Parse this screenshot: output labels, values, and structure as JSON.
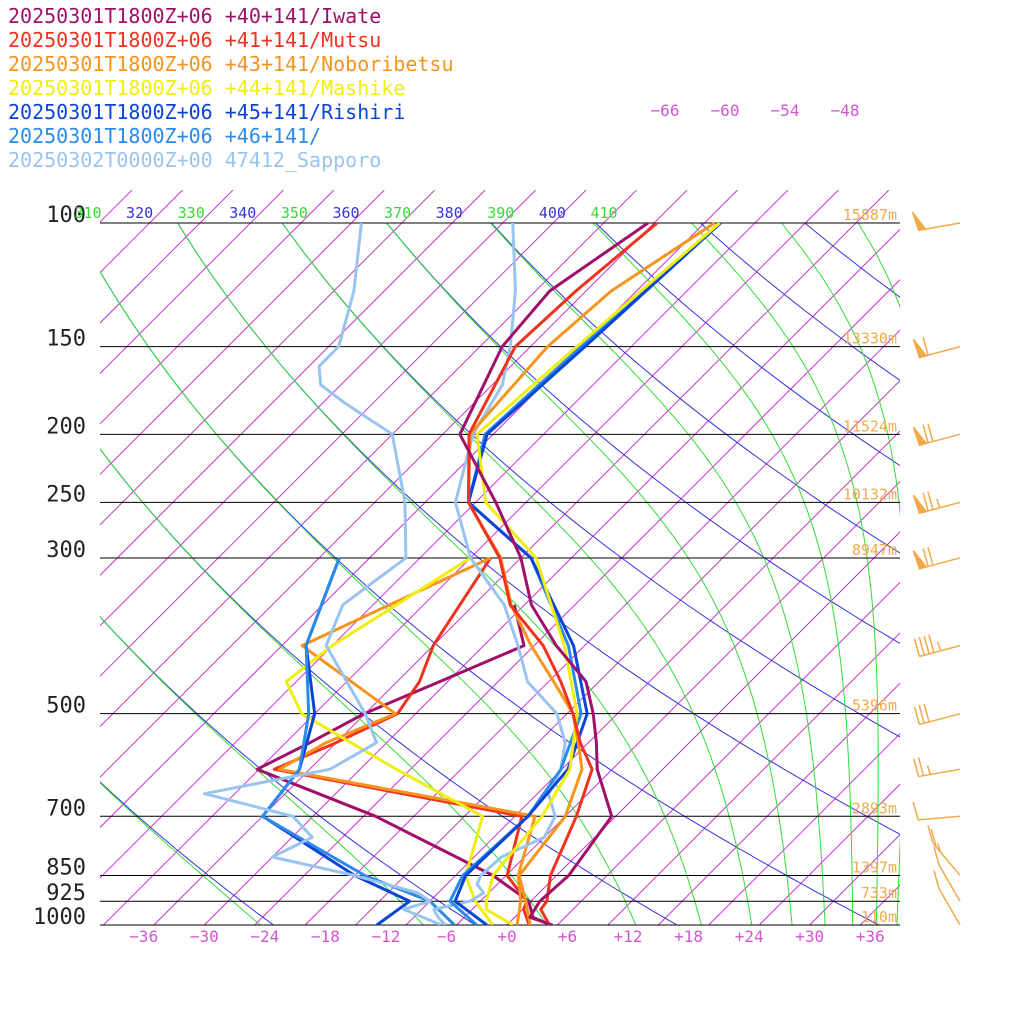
{
  "colors": {
    "isobar": "#000000",
    "isotherm": "#cc33cc",
    "dry_adiabat": "#3333dd",
    "moist_adiabat": "#33dd33",
    "tick_label": "#d455d4",
    "height_label": "#f2a94a",
    "barb": "#f2a94a"
  },
  "chart_data": {
    "type": "line",
    "chart_kind": "skew-T log-P sounding",
    "title": "",
    "xlabel": "",
    "ylabel": "",
    "x_range_degC": [
      -40,
      40
    ],
    "pressure_range_hPa": [
      1000,
      100
    ],
    "pressure_ticks": [
      {
        "p": 100,
        "label": "100"
      },
      {
        "p": 150,
        "label": "150"
      },
      {
        "p": 200,
        "label": "200"
      },
      {
        "p": 250,
        "label": "250"
      },
      {
        "p": 300,
        "label": "300"
      },
      {
        "p": 500,
        "label": "500"
      },
      {
        "p": 700,
        "label": "700"
      },
      {
        "p": 850,
        "label": "850"
      },
      {
        "p": 925,
        "label": "925"
      },
      {
        "p": 1000,
        "label": "1000"
      }
    ],
    "temperature_ticks": [
      {
        "t": -36,
        "label": "−36"
      },
      {
        "t": -30,
        "label": "−30"
      },
      {
        "t": -24,
        "label": "−24"
      },
      {
        "t": -18,
        "label": "−18"
      },
      {
        "t": -12,
        "label": "−12"
      },
      {
        "t": -6,
        "label": "−6"
      },
      {
        "t": 0,
        "label": "+0"
      },
      {
        "t": 6,
        "label": "+6"
      },
      {
        "t": 12,
        "label": "+12"
      },
      {
        "t": 18,
        "label": "+18"
      },
      {
        "t": 24,
        "label": "+24"
      },
      {
        "t": 30,
        "label": "+30"
      },
      {
        "t": 36,
        "label": "+36"
      }
    ],
    "upper_temperature_labels": [
      "−66",
      "−60",
      "−54",
      "−48"
    ],
    "theta_labels": [
      {
        "label": "310",
        "kind": "moist"
      },
      {
        "label": "320",
        "kind": "dry"
      },
      {
        "label": "330",
        "kind": "moist"
      },
      {
        "label": "340",
        "kind": "dry"
      },
      {
        "label": "350",
        "kind": "moist"
      },
      {
        "label": "360",
        "kind": "dry"
      },
      {
        "label": "370",
        "kind": "moist"
      },
      {
        "label": "380",
        "kind": "dry"
      },
      {
        "label": "390",
        "kind": "moist"
      },
      {
        "label": "400",
        "kind": "dry"
      },
      {
        "label": "410",
        "kind": "moist"
      }
    ],
    "height_labels": [
      {
        "p": 100,
        "label": "15887m"
      },
      {
        "p": 150,
        "label": "13330m"
      },
      {
        "p": 200,
        "label": "11524m"
      },
      {
        "p": 250,
        "label": "10132m"
      },
      {
        "p": 300,
        "label": "8947m"
      },
      {
        "p": 500,
        "label": "5396m"
      },
      {
        "p": 700,
        "label": "2893m"
      },
      {
        "p": 850,
        "label": "1397m"
      },
      {
        "p": 925,
        "label": "733m"
      },
      {
        "p": 1000,
        "label": "110m"
      }
    ],
    "series": [
      {
        "name": "20250301T1800Z+06 +40+141/Iwate",
        "color": "#a0106a",
        "temperature": [
          [
            1000,
            4.5
          ],
          [
            975,
            1.5
          ],
          [
            925,
            0.9
          ],
          [
            850,
            1.2
          ],
          [
            700,
            -0.4
          ],
          [
            600,
            -6.5
          ],
          [
            550,
            -9.2
          ],
          [
            500,
            -12.4
          ],
          [
            450,
            -16.3
          ],
          [
            400,
            -22.8
          ],
          [
            350,
            -29.3
          ],
          [
            300,
            -35.0
          ],
          [
            250,
            -43.0
          ],
          [
            200,
            -53.3
          ],
          [
            150,
            -57.8
          ],
          [
            125,
            -58.6
          ],
          [
            100,
            -55.6
          ]
        ],
        "dewpoint": [
          [
            1000,
            4.3
          ],
          [
            975,
            1.8
          ],
          [
            925,
            -0.2
          ],
          [
            850,
            -6.3
          ],
          [
            700,
            -23.8
          ],
          [
            600,
            -40.2
          ],
          [
            550,
            -37.6
          ],
          [
            500,
            -35.1
          ],
          [
            450,
            -30.8
          ],
          [
            400,
            -26.0
          ],
          [
            350,
            -31.0
          ]
        ]
      },
      {
        "name": "20250301T1800Z+06 +41+141/Mutsu",
        "color": "#f0321e",
        "temperature": [
          [
            1000,
            4.2
          ],
          [
            950,
            1.8
          ],
          [
            925,
            1.6
          ],
          [
            850,
            -0.6
          ],
          [
            700,
            -3.9
          ],
          [
            600,
            -7.0
          ],
          [
            550,
            -10.8
          ],
          [
            500,
            -14.4
          ],
          [
            450,
            -18.8
          ],
          [
            400,
            -24.1
          ],
          [
            350,
            -31.4
          ],
          [
            300,
            -37.1
          ],
          [
            250,
            -45.7
          ],
          [
            200,
            -52.4
          ],
          [
            150,
            -56.5
          ],
          [
            125,
            -56.0
          ],
          [
            100,
            -54.7
          ]
        ],
        "dewpoint": [
          [
            1000,
            2.2
          ],
          [
            950,
            0.1
          ],
          [
            925,
            -0.4
          ],
          [
            850,
            -4.9
          ],
          [
            700,
            -9.3
          ],
          [
            600,
            -38.5
          ],
          [
            550,
            -35.0
          ],
          [
            500,
            -31.8
          ],
          [
            450,
            -32.8
          ],
          [
            400,
            -35.0
          ],
          [
            300,
            -38.0
          ]
        ]
      },
      {
        "name": "20250301T1800Z+06 +43+141/Noboribetsu",
        "color": "#f7941d",
        "temperature": [
          [
            1000,
            2.3
          ],
          [
            925,
            -0.5
          ],
          [
            850,
            -3.7
          ],
          [
            700,
            -5.0
          ],
          [
            600,
            -8.0
          ],
          [
            550,
            -11.0
          ],
          [
            500,
            -14.4
          ],
          [
            450,
            -19.5
          ],
          [
            400,
            -25.3
          ],
          [
            350,
            -31.3
          ],
          [
            300,
            -37.0
          ],
          [
            250,
            -45.7
          ],
          [
            200,
            -52.3
          ],
          [
            150,
            -53.3
          ],
          [
            125,
            -52.5
          ],
          [
            100,
            -49.0
          ]
        ],
        "dewpoint": [
          [
            1000,
            1.0
          ],
          [
            925,
            -1.0
          ],
          [
            850,
            -3.8
          ],
          [
            700,
            -8.0
          ],
          [
            600,
            -38.0
          ],
          [
            550,
            -36.0
          ],
          [
            500,
            -32.0
          ],
          [
            400,
            -48.0
          ],
          [
            300,
            -38.0
          ]
        ]
      },
      {
        "name": "20250301T1800Z+06 +44+141/Mashike",
        "color": "#f0ee10",
        "temperature": [
          [
            1000,
            0.6
          ],
          [
            950,
            -3.6
          ],
          [
            925,
            -4.4
          ],
          [
            850,
            -6.3
          ],
          [
            700,
            -7.3
          ],
          [
            600,
            -9.2
          ],
          [
            500,
            -14.0
          ],
          [
            400,
            -22.0
          ],
          [
            300,
            -33.5
          ],
          [
            250,
            -44.0
          ],
          [
            200,
            -51.6
          ],
          [
            150,
            -50.4
          ],
          [
            100,
            -48.5
          ]
        ],
        "dewpoint": [
          [
            1000,
            -1.4
          ],
          [
            925,
            -5.5
          ],
          [
            850,
            -9.0
          ],
          [
            700,
            -13.2
          ],
          [
            600,
            -26.4
          ],
          [
            500,
            -41.3
          ],
          [
            450,
            -46.0
          ],
          [
            400,
            -45.0
          ],
          [
            300,
            -40.0
          ]
        ]
      },
      {
        "name": "20250301T1800Z+06 +45+141/Rishiri",
        "color": "#0b45d8",
        "temperature": [
          [
            1000,
            -2.0
          ],
          [
            925,
            -7.5
          ],
          [
            850,
            -9.0
          ],
          [
            700,
            -8.7
          ],
          [
            600,
            -9.4
          ],
          [
            500,
            -13.0
          ],
          [
            400,
            -21.1
          ],
          [
            300,
            -34.0
          ],
          [
            250,
            -45.7
          ],
          [
            200,
            -50.6
          ],
          [
            150,
            -49.6
          ],
          [
            100,
            -48.4
          ]
        ],
        "dewpoint": [
          [
            1000,
            -12.9
          ],
          [
            925,
            -12.0
          ],
          [
            850,
            -20.0
          ],
          [
            700,
            -35.0
          ],
          [
            600,
            -36.0
          ],
          [
            500,
            -40.0
          ],
          [
            400,
            -47.6
          ],
          [
            300,
            -53.0
          ]
        ]
      },
      {
        "name": "20250301T1800Z+06 +46+141/",
        "color": "#2a8bea",
        "temperature": [
          [
            1000,
            -3.0
          ],
          [
            925,
            -8.0
          ],
          [
            850,
            -9.3
          ],
          [
            700,
            -8.7
          ],
          [
            600,
            -10.1
          ],
          [
            500,
            -13.6
          ],
          [
            400,
            -21.6
          ],
          [
            300,
            -34.0
          ],
          [
            250,
            -45.7
          ],
          [
            200,
            -50.8
          ],
          [
            150,
            -50.0
          ],
          [
            100,
            -48.4
          ]
        ],
        "dewpoint": [
          [
            1000,
            -5.2
          ],
          [
            925,
            -10.0
          ],
          [
            850,
            -19.0
          ],
          [
            700,
            -35.0
          ],
          [
            600,
            -36.0
          ],
          [
            500,
            -40.6
          ],
          [
            400,
            -47.6
          ],
          [
            300,
            -53.0
          ]
        ]
      },
      {
        "name": "20250302T0000Z+00 47412_Sapporo",
        "color": "#99c4f0",
        "temperature": [
          [
            1000,
            -6.1
          ],
          [
            975,
            -7.6
          ],
          [
            950,
            -8.8
          ],
          [
            925,
            -6.0
          ],
          [
            900,
            -5.5
          ],
          [
            875,
            -7.0
          ],
          [
            850,
            -7.5
          ],
          [
            800,
            -7.3
          ],
          [
            750,
            -5.0
          ],
          [
            700,
            -6.0
          ],
          [
            650,
            -8.9
          ],
          [
            600,
            -10.1
          ],
          [
            550,
            -12.3
          ],
          [
            500,
            -16.0
          ],
          [
            450,
            -22.1
          ],
          [
            400,
            -26.6
          ],
          [
            350,
            -32.0
          ],
          [
            300,
            -40.0
          ],
          [
            250,
            -47.0
          ],
          [
            200,
            -52.0
          ],
          [
            170,
            -54.0
          ],
          [
            150,
            -57.0
          ],
          [
            125,
            -62.0
          ],
          [
            100,
            -69.0
          ]
        ],
        "dewpoint": [
          [
            1000,
            -6.5
          ],
          [
            975,
            -9.1
          ],
          [
            950,
            -11.8
          ],
          [
            925,
            -10.0
          ],
          [
            900,
            -12.0
          ],
          [
            850,
            -20.0
          ],
          [
            800,
            -30.0
          ],
          [
            750,
            -28.0
          ],
          [
            700,
            -32.0
          ],
          [
            650,
            -43.0
          ],
          [
            600,
            -33.0
          ],
          [
            550,
            -31.0
          ],
          [
            500,
            -35.0
          ],
          [
            450,
            -40.0
          ],
          [
            400,
            -45.6
          ],
          [
            350,
            -48.0
          ],
          [
            300,
            -46.4
          ],
          [
            250,
            -52.0
          ],
          [
            200,
            -60.0
          ],
          [
            180,
            -68.0
          ],
          [
            170,
            -72.0
          ],
          [
            160,
            -74.0
          ],
          [
            150,
            -74.0
          ],
          [
            125,
            -78.0
          ],
          [
            100,
            -84.0
          ]
        ]
      }
    ],
    "wind_barbs": [
      {
        "p": 100,
        "speed_kt": 50,
        "dir_deg": 260
      },
      {
        "p": 150,
        "speed_kt": 60,
        "dir_deg": 255
      },
      {
        "p": 200,
        "speed_kt": 70,
        "dir_deg": 255
      },
      {
        "p": 250,
        "speed_kt": 75,
        "dir_deg": 255
      },
      {
        "p": 300,
        "speed_kt": 70,
        "dir_deg": 255
      },
      {
        "p": 400,
        "speed_kt": 45,
        "dir_deg": 255
      },
      {
        "p": 500,
        "speed_kt": 30,
        "dir_deg": 255
      },
      {
        "p": 600,
        "speed_kt": 25,
        "dir_deg": 260
      },
      {
        "p": 700,
        "speed_kt": 10,
        "dir_deg": 265
      },
      {
        "p": 850,
        "speed_kt": 25,
        "dir_deg": 320
      },
      {
        "p": 925,
        "speed_kt": 10,
        "dir_deg": 330
      },
      {
        "p": 1000,
        "speed_kt": 10,
        "dir_deg": 330
      }
    ]
  }
}
